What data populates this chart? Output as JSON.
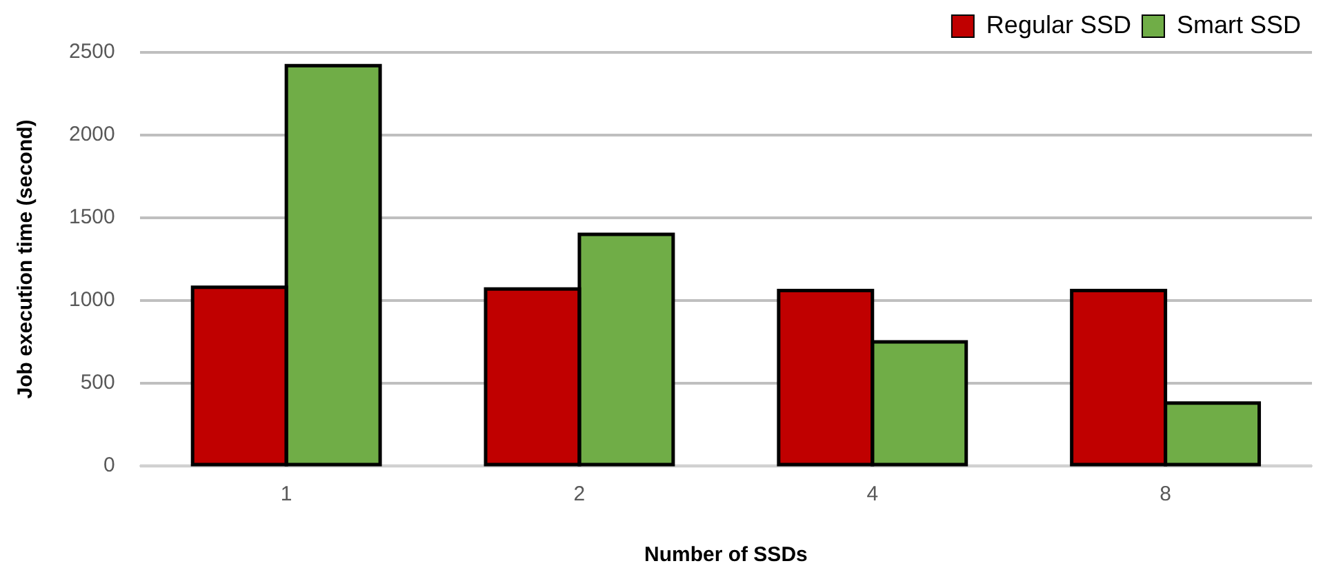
{
  "chart_data": {
    "type": "bar",
    "xlabel": "Number of SSDs",
    "ylabel": "Job execution time (second)",
    "categories": [
      "1",
      "2",
      "4",
      "8"
    ],
    "series": [
      {
        "name": "Regular SSD",
        "color": "#c00000",
        "values": [
          1080,
          1070,
          1060,
          1060
        ]
      },
      {
        "name": "Smart SSD",
        "color": "#70ad47",
        "values": [
          2420,
          1400,
          750,
          380
        ]
      }
    ],
    "ylim": [
      0,
      2500
    ],
    "yticks": [
      0,
      500,
      1000,
      1500,
      2000,
      2500
    ],
    "grid": "y",
    "legend": "top right"
  }
}
